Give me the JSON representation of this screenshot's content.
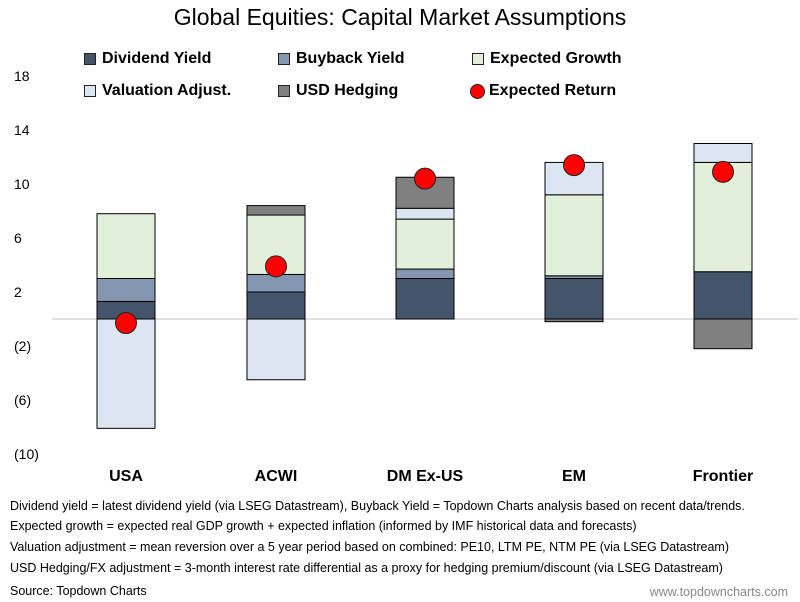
{
  "chart_data": {
    "type": "stacked-bar",
    "title": "Global Equities: Capital Market Assumptions",
    "categories": [
      "USA",
      "ACWI",
      "DM Ex-US",
      "EM",
      "Frontier"
    ],
    "y_ticks": [
      "18",
      "14",
      "10",
      "6",
      "2",
      "(2)",
      "(6)",
      "(10)"
    ],
    "ylim": [
      -10,
      18
    ],
    "series": [
      {
        "name": "Dividend Yield",
        "color": "#44546a",
        "values": [
          1.3,
          2.0,
          3.0,
          3.0,
          3.5
        ]
      },
      {
        "name": "Buyback Yield",
        "color": "#8497b0",
        "values": [
          1.7,
          1.3,
          0.7,
          0.2,
          0.0
        ]
      },
      {
        "name": "Expected Growth",
        "color": "#e2efda",
        "values": [
          4.8,
          4.4,
          3.7,
          6.0,
          8.1
        ]
      },
      {
        "name": "Valuation Adjust.",
        "color": "#dce6f2",
        "values": [
          -8.1,
          -4.5,
          0.8,
          2.4,
          1.4
        ]
      },
      {
        "name": "USD Hedging",
        "color": "#808080",
        "values": [
          0.0,
          0.7,
          2.3,
          -0.2,
          -2.2
        ]
      }
    ],
    "expected_return": {
      "name": "Expected Return",
      "color": "#ff0000",
      "values": [
        -0.3,
        3.9,
        10.4,
        11.4,
        10.9
      ]
    },
    "legend_position": "top"
  },
  "notes": [
    "Dividend yield = latest dividend yield (via LSEG Datastream), Buyback Yield = Topdown Charts analysis based on recent data/trends.",
    "Expected growth = expected real GDP growth + expected inflation (informed by IMF historical data and forecasts)",
    "Valuation adjustment = mean reversion over a 5 year period based on combined: PE10, LTM PE, NTM PE (via LSEG Datastream)",
    "USD Hedging/FX adjustment = 3-month interest rate differential as a proxy for hedging premium/discount (via LSEG Datastream)"
  ],
  "source": "Source: Topdown Charts",
  "website": "www.topdowncharts.com"
}
